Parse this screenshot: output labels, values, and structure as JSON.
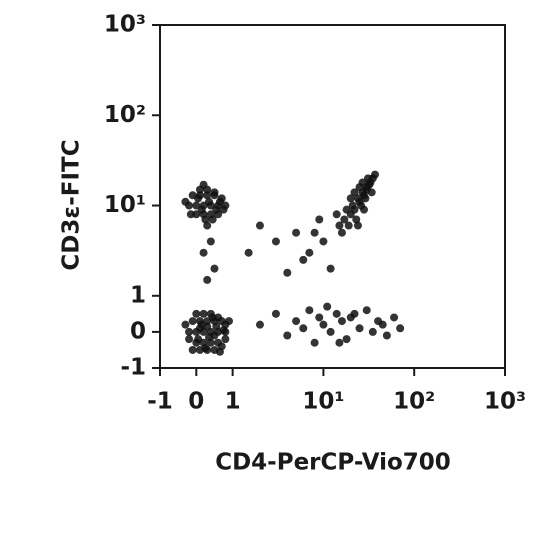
{
  "chart_data": {
    "type": "scatter",
    "x_label": "CD4-PerCP-Vio700",
    "y_label": "CD3ε-FITC",
    "color": "#111111",
    "xscale": "biexponential",
    "yscale": "biexponential",
    "xlim": [
      -1,
      1000
    ],
    "ylim": [
      -1,
      1000
    ],
    "xticks": [
      -1,
      0,
      1,
      {
        "value": 10,
        "label": "10¹"
      },
      {
        "value": 100,
        "label": "10²"
      },
      {
        "value": 1000,
        "label": "10³"
      }
    ],
    "yticks": [
      -1,
      0,
      1,
      {
        "value": 10,
        "label": "10¹"
      },
      {
        "value": 100,
        "label": "10²"
      },
      {
        "value": 1000,
        "label": "10³"
      }
    ],
    "x": [
      -0.2,
      0,
      0.2,
      0.4,
      0.6,
      0.8,
      -0.1,
      0.1,
      0.3,
      0.5,
      0.7,
      0.9,
      -0.3,
      0,
      0.2,
      0.4,
      0.6,
      0.8,
      -0.1,
      0.1,
      0.3,
      0.5,
      0.7,
      0.2,
      0.4,
      0,
      0.6,
      0.3,
      0.1,
      0.5,
      -0.2,
      0.8,
      0.35,
      0.15,
      0.55,
      0.25,
      0.45,
      0.05,
      0.65,
      0.75,
      -0.2,
      0,
      0.2,
      0.4,
      0.6,
      0.8,
      -0.1,
      0.1,
      0.3,
      0.5,
      0.7,
      -0.3,
      0,
      0.2,
      0.4,
      0.6,
      0.1,
      0.3,
      0.5,
      0.25,
      0.45,
      0.05,
      0.35,
      0.15,
      0.55,
      0.65,
      -0.15,
      0.75,
      0.3,
      0.2,
      15,
      17,
      20,
      22,
      25,
      28,
      30,
      32,
      35,
      18,
      21,
      24,
      27,
      30,
      33,
      16,
      19,
      23,
      26,
      29,
      34,
      37,
      14,
      20,
      25,
      31,
      22,
      27,
      24,
      28,
      0.3,
      0.2,
      0.5,
      0.4,
      1.5,
      3,
      5,
      8,
      10,
      6,
      4,
      2,
      12,
      9,
      7,
      2,
      3,
      4,
      5,
      6,
      7,
      8,
      9,
      10,
      12,
      14,
      16,
      18,
      20,
      25,
      30,
      35,
      40,
      45,
      50,
      60,
      70,
      11,
      15,
      22
    ],
    "y": [
      0,
      0,
      0,
      0,
      0,
      0,
      0.3,
      0.3,
      0.3,
      0.3,
      0.3,
      0.3,
      0.2,
      -0.3,
      -0.3,
      -0.3,
      -0.3,
      -0.2,
      -0.5,
      -0.5,
      -0.5,
      -0.5,
      -0.4,
      0.5,
      0.5,
      0.5,
      0.4,
      0.15,
      0.1,
      -0.1,
      -0.2,
      0.2,
      -0.15,
      0.2,
      0.15,
      -0.45,
      0.4,
      -0.2,
      -0.55,
      0.05,
      10,
      10,
      10,
      10,
      10,
      10,
      13,
      13,
      13,
      13,
      12,
      11,
      8,
      8,
      8,
      8,
      15,
      15,
      14,
      7,
      7,
      12,
      11,
      9,
      9,
      11,
      8,
      9,
      6,
      17,
      6,
      7,
      8,
      9,
      11,
      13,
      15,
      17,
      20,
      9,
      10,
      12,
      14,
      16,
      18,
      5,
      6,
      7,
      10,
      12,
      14,
      22,
      8,
      12,
      16,
      20,
      14,
      18,
      6,
      9,
      1.5,
      3,
      2,
      4,
      3,
      4,
      5,
      5,
      4,
      2.5,
      1.8,
      6,
      2,
      7,
      3,
      0.2,
      0.5,
      -0.1,
      0.3,
      0.1,
      0.6,
      -0.3,
      0.4,
      0.2,
      0,
      0.5,
      0.3,
      -0.2,
      0.4,
      0.1,
      0.6,
      0,
      0.3,
      0.2,
      -0.1,
      0.4,
      0.1,
      0.7,
      -0.3,
      0.5
    ]
  }
}
